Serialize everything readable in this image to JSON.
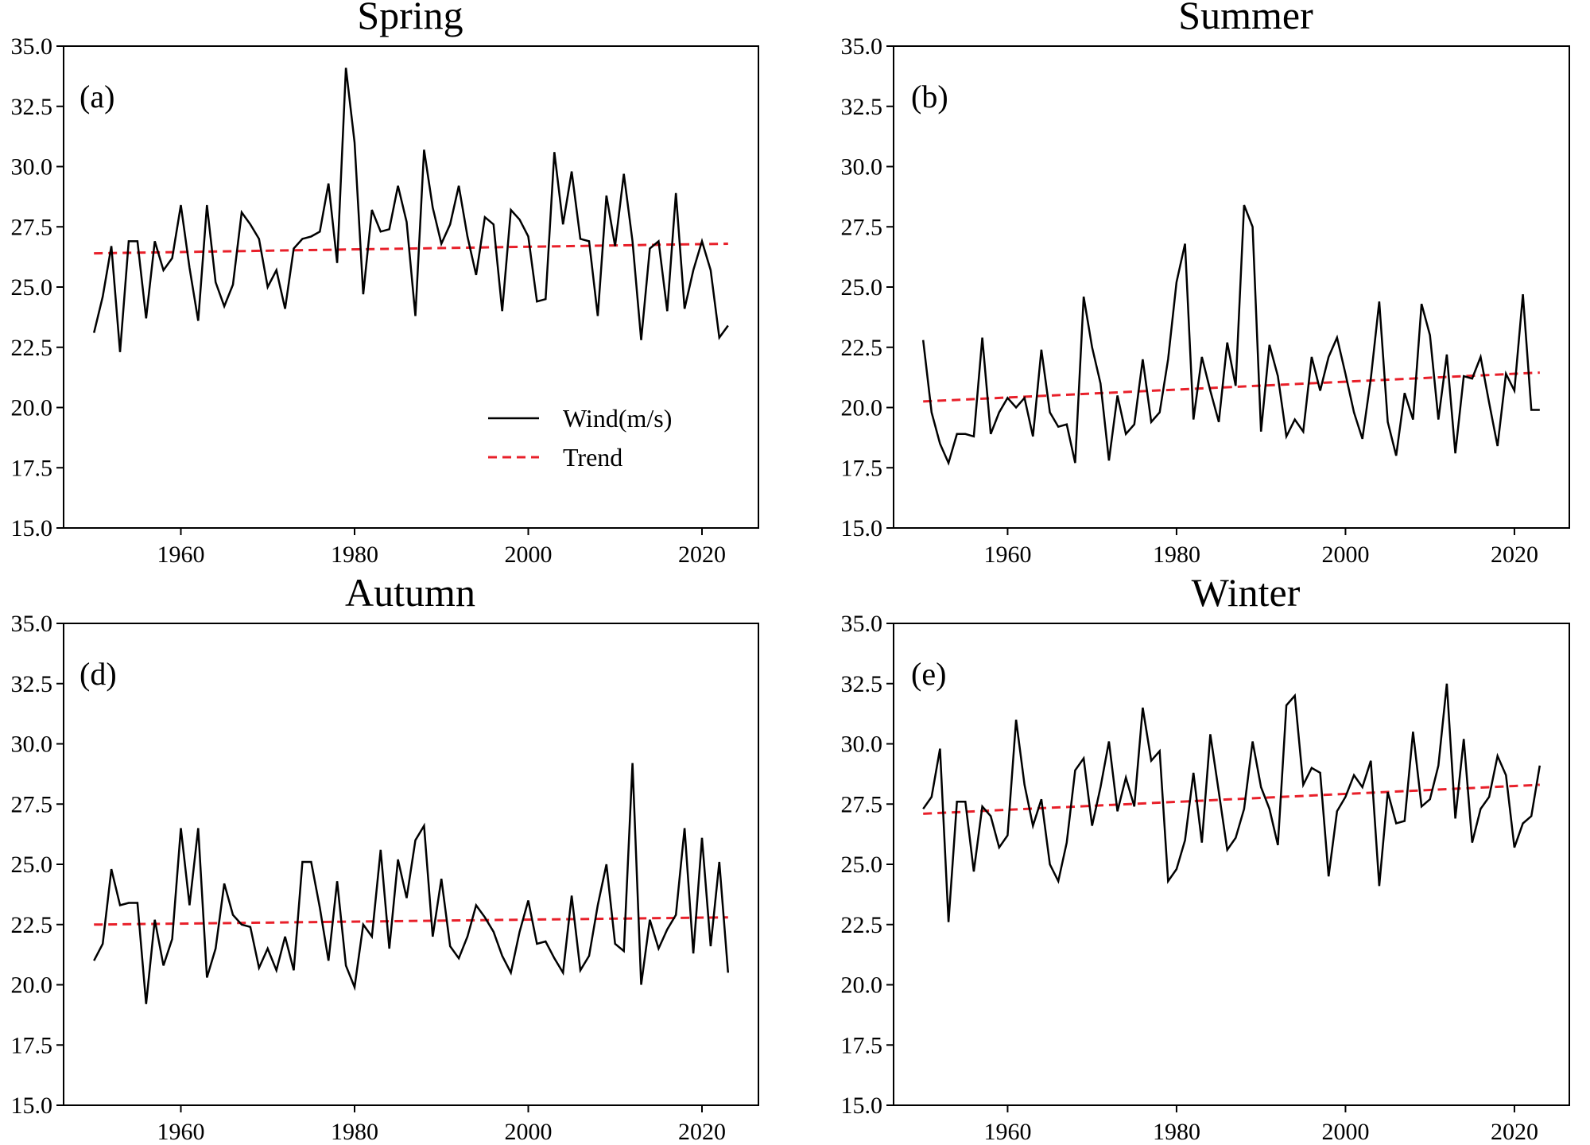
{
  "figure": {
    "legend": {
      "series_label": "Wind(m/s)",
      "trend_label": "Trend"
    },
    "colors": {
      "series": "#000000",
      "trend": "#e8202a",
      "axes": "#000000"
    }
  },
  "chart_data": [
    {
      "type": "line",
      "title": "Spring",
      "panel_label": "(a)",
      "xlabel": "",
      "ylabel": "",
      "xlim": [
        1946.5,
        2026.5
      ],
      "ylim": [
        15.0,
        35.0
      ],
      "xticks": [
        "1960",
        "1980",
        "2000",
        "2020"
      ],
      "yticks": [
        "15.0",
        "17.5",
        "20.0",
        "22.5",
        "25.0",
        "27.5",
        "30.0",
        "32.5",
        "35.0"
      ],
      "legend": "center-right",
      "series": [
        {
          "name": "Wind(m/s)",
          "x": [
            1950,
            1951,
            1952,
            1953,
            1954,
            1955,
            1956,
            1957,
            1958,
            1959,
            1960,
            1961,
            1962,
            1963,
            1964,
            1965,
            1966,
            1967,
            1968,
            1969,
            1970,
            1971,
            1972,
            1973,
            1974,
            1975,
            1976,
            1977,
            1978,
            1979,
            1980,
            1981,
            1982,
            1983,
            1984,
            1985,
            1986,
            1987,
            1988,
            1989,
            1990,
            1991,
            1992,
            1993,
            1994,
            1995,
            1996,
            1997,
            1998,
            1999,
            2000,
            2001,
            2002,
            2003,
            2004,
            2005,
            2006,
            2007,
            2008,
            2009,
            2010,
            2011,
            2012,
            2013,
            2014,
            2015,
            2016,
            2017,
            2018,
            2019,
            2020,
            2021,
            2022,
            2023
          ],
          "values": [
            23.1,
            24.6,
            26.7,
            22.3,
            26.9,
            26.9,
            23.7,
            26.9,
            25.7,
            26.2,
            28.4,
            25.8,
            23.6,
            28.4,
            25.2,
            24.2,
            25.1,
            28.1,
            27.6,
            27.0,
            25.0,
            25.7,
            24.1,
            26.6,
            27.0,
            27.1,
            27.3,
            29.3,
            26.0,
            34.1,
            31.0,
            24.7,
            28.2,
            27.3,
            27.4,
            29.2,
            27.7,
            23.8,
            30.7,
            28.3,
            26.8,
            27.6,
            29.2,
            27.1,
            25.5,
            27.9,
            27.6,
            24.0,
            28.2,
            27.8,
            27.1,
            24.4,
            24.5,
            30.6,
            27.6,
            29.8,
            27.0,
            26.9,
            23.8,
            28.8,
            26.7,
            29.7,
            26.9,
            22.8,
            26.6,
            26.9,
            24.0,
            28.9,
            24.1,
            25.7,
            26.9,
            25.7,
            22.9,
            23.4
          ]
        }
      ],
      "trend": {
        "name": "Trend",
        "x": [
          1950,
          2023
        ],
        "values": [
          26.4,
          26.8
        ]
      }
    },
    {
      "type": "line",
      "title": "Summer",
      "panel_label": "(b)",
      "xlabel": "",
      "ylabel": "",
      "xlim": [
        1946.5,
        2026.5
      ],
      "ylim": [
        15.0,
        35.0
      ],
      "xticks": [
        "1960",
        "1980",
        "2000",
        "2020"
      ],
      "yticks": [
        "15.0",
        "17.5",
        "20.0",
        "22.5",
        "25.0",
        "27.5",
        "30.0",
        "32.5",
        "35.0"
      ],
      "series": [
        {
          "name": "Wind(m/s)",
          "x": [
            1950,
            1951,
            1952,
            1953,
            1954,
            1955,
            1956,
            1957,
            1958,
            1959,
            1960,
            1961,
            1962,
            1963,
            1964,
            1965,
            1966,
            1967,
            1968,
            1969,
            1970,
            1971,
            1972,
            1973,
            1974,
            1975,
            1976,
            1977,
            1978,
            1979,
            1980,
            1981,
            1982,
            1983,
            1984,
            1985,
            1986,
            1987,
            1988,
            1989,
            1990,
            1991,
            1992,
            1993,
            1994,
            1995,
            1996,
            1997,
            1998,
            1999,
            2000,
            2001,
            2002,
            2003,
            2004,
            2005,
            2006,
            2007,
            2008,
            2009,
            2010,
            2011,
            2012,
            2013,
            2014,
            2015,
            2016,
            2017,
            2018,
            2019,
            2020,
            2021,
            2022,
            2023
          ],
          "values": [
            22.8,
            19.8,
            18.5,
            17.7,
            18.9,
            18.9,
            18.8,
            22.9,
            18.9,
            19.8,
            20.4,
            20.0,
            20.4,
            18.8,
            22.4,
            19.8,
            19.2,
            19.3,
            17.7,
            24.6,
            22.5,
            21.0,
            17.8,
            20.5,
            18.9,
            19.3,
            22.0,
            19.4,
            19.8,
            22.0,
            25.2,
            26.8,
            19.5,
            22.1,
            20.7,
            19.4,
            22.7,
            20.9,
            28.4,
            27.5,
            19.0,
            22.6,
            21.3,
            18.8,
            19.5,
            19.0,
            22.1,
            20.7,
            22.1,
            22.9,
            21.4,
            19.8,
            18.7,
            21.2,
            24.4,
            19.4,
            18.0,
            20.6,
            19.5,
            24.3,
            23.0,
            19.5,
            22.2,
            18.1,
            21.3,
            21.2,
            22.1,
            20.2,
            18.4,
            21.4,
            20.7,
            24.7,
            19.9,
            19.9
          ]
        }
      ],
      "trend": {
        "name": "Trend",
        "x": [
          1950,
          2023
        ],
        "values": [
          20.25,
          21.45
        ]
      }
    },
    {
      "type": "line",
      "title": "Autumn",
      "panel_label": "(d)",
      "xlabel": "",
      "ylabel": "",
      "xlim": [
        1946.5,
        2026.5
      ],
      "ylim": [
        15.0,
        35.0
      ],
      "xticks": [
        "1960",
        "1980",
        "2000",
        "2020"
      ],
      "yticks": [
        "15.0",
        "17.5",
        "20.0",
        "22.5",
        "25.0",
        "27.5",
        "30.0",
        "32.5",
        "35.0"
      ],
      "series": [
        {
          "name": "Wind(m/s)",
          "x": [
            1950,
            1951,
            1952,
            1953,
            1954,
            1955,
            1956,
            1957,
            1958,
            1959,
            1960,
            1961,
            1962,
            1963,
            1964,
            1965,
            1966,
            1967,
            1968,
            1969,
            1970,
            1971,
            1972,
            1973,
            1974,
            1975,
            1976,
            1977,
            1978,
            1979,
            1980,
            1981,
            1982,
            1983,
            1984,
            1985,
            1986,
            1987,
            1988,
            1989,
            1990,
            1991,
            1992,
            1993,
            1994,
            1995,
            1996,
            1997,
            1998,
            1999,
            2000,
            2001,
            2002,
            2003,
            2004,
            2005,
            2006,
            2007,
            2008,
            2009,
            2010,
            2011,
            2012,
            2013,
            2014,
            2015,
            2016,
            2017,
            2018,
            2019,
            2020,
            2021,
            2022,
            2023
          ],
          "values": [
            21.0,
            21.7,
            24.8,
            23.3,
            23.4,
            23.4,
            19.2,
            22.7,
            20.8,
            21.9,
            26.5,
            23.3,
            26.5,
            20.3,
            21.5,
            24.2,
            22.9,
            22.5,
            22.4,
            20.7,
            21.5,
            20.6,
            22.0,
            20.6,
            25.1,
            25.1,
            23.2,
            21.0,
            24.3,
            20.8,
            19.9,
            22.5,
            22.0,
            25.6,
            21.5,
            25.2,
            23.6,
            26.0,
            26.6,
            22.0,
            24.4,
            21.6,
            21.1,
            22.0,
            23.3,
            22.8,
            22.2,
            21.2,
            20.5,
            22.2,
            23.5,
            21.7,
            21.8,
            21.1,
            20.5,
            23.7,
            20.6,
            21.2,
            23.3,
            25.0,
            21.7,
            21.4,
            29.2,
            20.0,
            22.7,
            21.5,
            22.3,
            22.9,
            26.5,
            21.3,
            26.1,
            21.6,
            25.1,
            20.5
          ]
        }
      ],
      "trend": {
        "name": "Trend",
        "x": [
          1950,
          2023
        ],
        "values": [
          22.5,
          22.8
        ]
      }
    },
    {
      "type": "line",
      "title": "Winter",
      "panel_label": "(e)",
      "xlabel": "",
      "ylabel": "",
      "xlim": [
        1946.5,
        2026.5
      ],
      "ylim": [
        15.0,
        35.0
      ],
      "xticks": [
        "1960",
        "1980",
        "2000",
        "2020"
      ],
      "yticks": [
        "15.0",
        "17.5",
        "20.0",
        "22.5",
        "25.0",
        "27.5",
        "30.0",
        "32.5",
        "35.0"
      ],
      "series": [
        {
          "name": "Wind(m/s)",
          "x": [
            1950,
            1951,
            1952,
            1953,
            1954,
            1955,
            1956,
            1957,
            1958,
            1959,
            1960,
            1961,
            1962,
            1963,
            1964,
            1965,
            1966,
            1967,
            1968,
            1969,
            1970,
            1971,
            1972,
            1973,
            1974,
            1975,
            1976,
            1977,
            1978,
            1979,
            1980,
            1981,
            1982,
            1983,
            1984,
            1985,
            1986,
            1987,
            1988,
            1989,
            1990,
            1991,
            1992,
            1993,
            1994,
            1995,
            1996,
            1997,
            1998,
            1999,
            2000,
            2001,
            2002,
            2003,
            2004,
            2005,
            2006,
            2007,
            2008,
            2009,
            2010,
            2011,
            2012,
            2013,
            2014,
            2015,
            2016,
            2017,
            2018,
            2019,
            2020,
            2021,
            2022,
            2023
          ],
          "values": [
            27.3,
            27.8,
            29.8,
            22.6,
            27.6,
            27.6,
            24.7,
            27.4,
            27.0,
            25.7,
            26.2,
            31.0,
            28.3,
            26.6,
            27.7,
            25.0,
            24.3,
            25.9,
            28.9,
            29.4,
            26.6,
            28.2,
            30.1,
            27.2,
            28.6,
            27.4,
            31.5,
            29.3,
            29.7,
            24.3,
            24.8,
            26.0,
            28.8,
            25.9,
            30.4,
            28.0,
            25.6,
            26.1,
            27.3,
            30.1,
            28.2,
            27.3,
            25.8,
            31.6,
            32.0,
            28.3,
            29.0,
            28.8,
            24.5,
            27.2,
            27.8,
            28.7,
            28.2,
            29.3,
            24.1,
            28.0,
            26.7,
            26.8,
            30.5,
            27.4,
            27.7,
            29.1,
            32.5,
            26.9,
            30.2,
            25.9,
            27.3,
            27.8,
            29.5,
            28.7,
            25.7,
            26.7,
            27.0,
            29.1
          ]
        }
      ],
      "trend": {
        "name": "Trend",
        "x": [
          1950,
          2023
        ],
        "values": [
          27.1,
          28.3
        ]
      }
    }
  ]
}
